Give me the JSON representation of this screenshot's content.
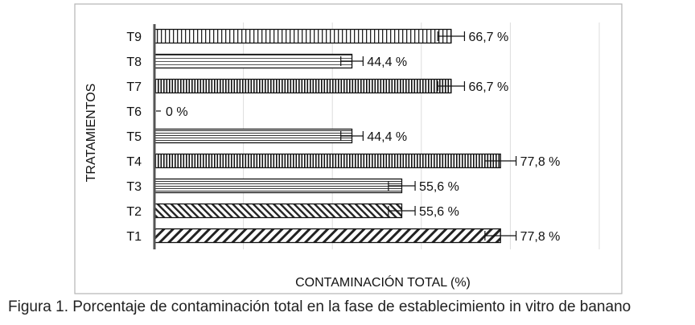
{
  "figure_caption": "Figura 1. Porcentaje de contaminación total en la fase de establecimiento in vitro de banano",
  "chart_data": {
    "type": "bar",
    "orientation": "horizontal",
    "xlabel": "CONTAMINACIÓN TOTAL (%)",
    "ylabel": "TRATAMIENTOS",
    "xlim": [
      0,
      100
    ],
    "grid": true,
    "categories": [
      "T1",
      "T2",
      "T3",
      "T4",
      "T5",
      "T6",
      "T7",
      "T8",
      "T9"
    ],
    "values": [
      77.8,
      55.6,
      55.6,
      77.8,
      44.4,
      0,
      66.7,
      44.4,
      66.7
    ],
    "data_labels": [
      "77,8 %",
      "55,6 %",
      "55,6 %",
      "77,8 %",
      "44,4 %",
      "0 %",
      "66,7 %",
      "44,4 %",
      "66,7 %"
    ],
    "error": [
      3.5,
      3,
      3,
      3.5,
      2.5,
      0,
      3,
      2.5,
      3
    ],
    "patterns": [
      "diag-wide",
      "diag-narrow",
      "horizontal",
      "vertical-dense",
      "horizontal",
      "none",
      "vertical-dense",
      "horizontal-wide",
      "vertical"
    ]
  }
}
